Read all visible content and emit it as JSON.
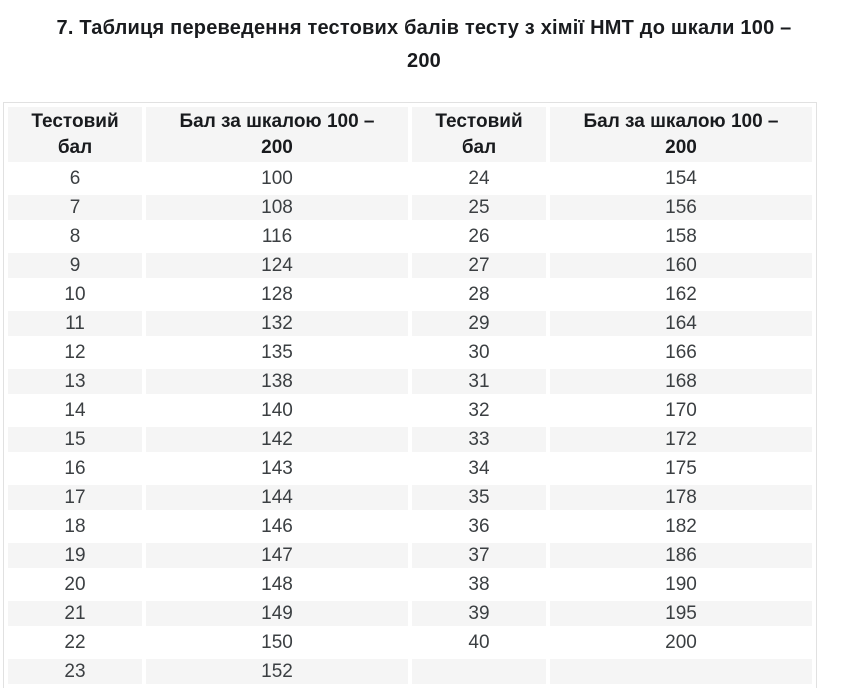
{
  "title": {
    "line1": "7. Таблиця переведення тестових балів тесту з хімії НМТ до шкали 100 –",
    "line2": "200"
  },
  "table": {
    "headers": [
      {
        "line1": "Тестовий",
        "line2": "бал"
      },
      {
        "line1": "Бал за шкалою 100 –",
        "line2": "200"
      },
      {
        "line1": "Тестовий",
        "line2": "бал"
      },
      {
        "line1": "Бал за шкалою 100 –",
        "line2": "200"
      }
    ],
    "rows": [
      [
        "6",
        "100",
        "24",
        "154"
      ],
      [
        "7",
        "108",
        "25",
        "156"
      ],
      [
        "8",
        "116",
        "26",
        "158"
      ],
      [
        "9",
        "124",
        "27",
        "160"
      ],
      [
        "10",
        "128",
        "28",
        "162"
      ],
      [
        "11",
        "132",
        "29",
        "164"
      ],
      [
        "12",
        "135",
        "30",
        "166"
      ],
      [
        "13",
        "138",
        "31",
        "168"
      ],
      [
        "14",
        "140",
        "32",
        "170"
      ],
      [
        "15",
        "142",
        "33",
        "172"
      ],
      [
        "16",
        "143",
        "34",
        "175"
      ],
      [
        "17",
        "144",
        "35",
        "178"
      ],
      [
        "18",
        "146",
        "36",
        "182"
      ],
      [
        "19",
        "147",
        "37",
        "186"
      ],
      [
        "20",
        "148",
        "38",
        "190"
      ],
      [
        "21",
        "149",
        "39",
        "195"
      ],
      [
        "22",
        "150",
        "40",
        "200"
      ],
      [
        "23",
        "152",
        "",
        ""
      ]
    ]
  },
  "colors": {
    "background": "#ffffff",
    "stripe": "#f5f5f5",
    "border": "#e1e1e1",
    "heading_text": "#191b1e",
    "cell_text": "#3b3f42"
  }
}
